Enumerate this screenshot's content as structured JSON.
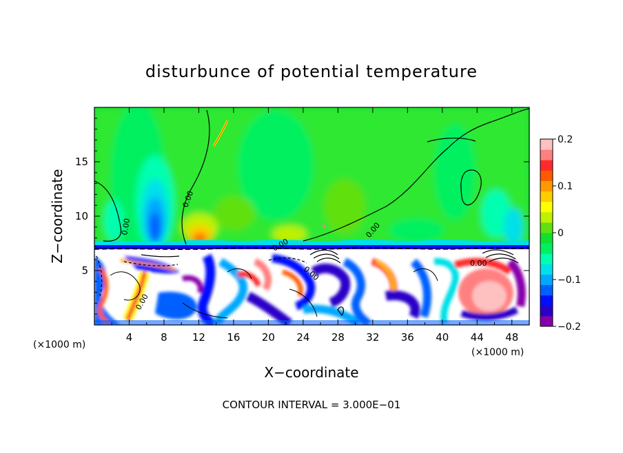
{
  "chart_data": {
    "type": "heatmap",
    "title": "disturbunce of potential temperature",
    "xlabel": "X−coordinate",
    "ylabel": "Z−coordinate",
    "x_unit_left": "(×1000 m)",
    "x_unit_right": "(×1000 m)",
    "xlim": [
      0,
      50
    ],
    "ylim": [
      0,
      20
    ],
    "xticks": [
      4,
      8,
      12,
      16,
      20,
      24,
      28,
      32,
      36,
      40,
      44,
      48
    ],
    "xtick_labels": [
      "4",
      "8",
      "12",
      "16",
      "20",
      "24",
      "28",
      "32",
      "36",
      "40",
      "44",
      "48"
    ],
    "yticks": [
      5,
      10,
      15
    ],
    "ytick_labels": [
      "5",
      "10",
      "15"
    ],
    "footer": "CONTOUR INTERVAL = 3.000E−01",
    "contour_labels": [
      "0.00",
      "0.00",
      "0.00",
      "0.00",
      "0.00",
      "0.00",
      "0.00"
    ],
    "colorbar": {
      "range": [
        -0.2,
        0.2
      ],
      "ticks": [
        0.2,
        0.1,
        0,
        -0.1,
        -0.2
      ],
      "tick_labels": [
        "0.2",
        "0.1",
        "0",
        "−0.1",
        "−0.2"
      ],
      "colors": [
        "#8800aa",
        "#2a00c8",
        "#0010ff",
        "#0060ff",
        "#00a8ff",
        "#00e0e8",
        "#00ffb0",
        "#00f060",
        "#10e030",
        "#60e010",
        "#c0f000",
        "#ffff00",
        "#ffcc00",
        "#ff9900",
        "#ff5a00",
        "#ff2a2a",
        "#ff8080",
        "#ffc0c0"
      ]
    }
  }
}
